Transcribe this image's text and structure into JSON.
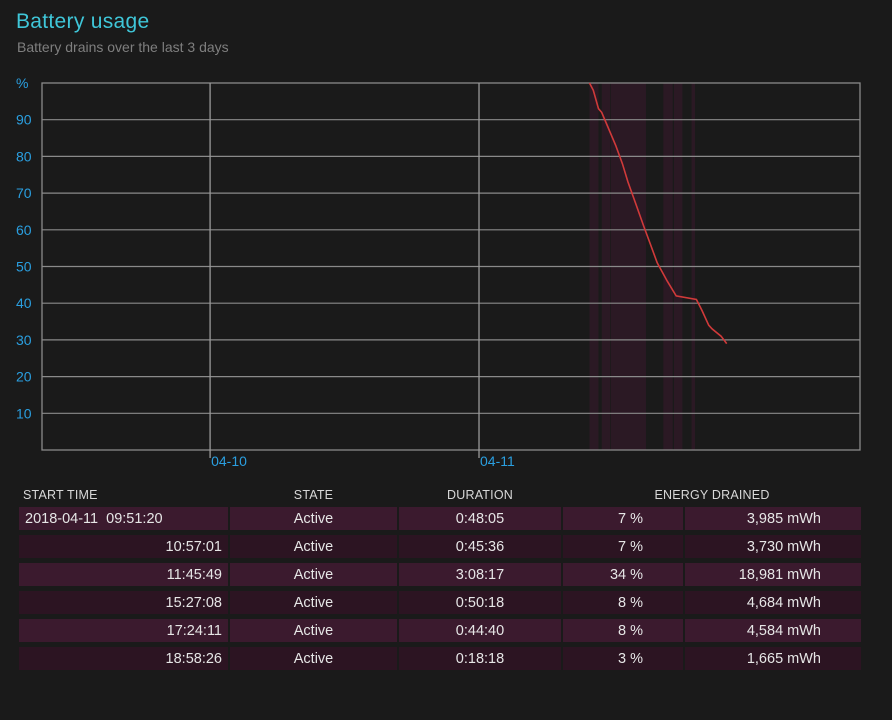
{
  "header": {
    "title": "Battery usage",
    "subtitle": "Battery drains over the last 3 days"
  },
  "colors": {
    "title": "#3fc6d8",
    "axis_label": "#2a9fe0",
    "drain_line": "#d03a3a",
    "active_band": "#3b1a2e",
    "row_odd": "#3b1a2e",
    "row_even": "#2c1422"
  },
  "chart_data": {
    "type": "line",
    "ylabel": "%",
    "ylim": [
      0,
      100
    ],
    "yticks": [
      10,
      20,
      30,
      40,
      50,
      60,
      70,
      80,
      90
    ],
    "x_tick_labels": [
      "04-10",
      "04-11"
    ],
    "x_unit": "hours",
    "x_range_hours": [
      -15,
      58
    ],
    "x_tick_hours": [
      0,
      24
    ],
    "grid": true,
    "series": [
      {
        "points": [
          [
            33.86,
            100
          ],
          [
            34.2,
            98
          ],
          [
            34.66,
            93
          ],
          [
            34.95,
            92
          ],
          [
            35.5,
            88
          ],
          [
            36.2,
            83
          ],
          [
            36.8,
            78
          ],
          [
            37.3,
            73
          ],
          [
            38.0,
            67
          ],
          [
            38.7,
            61
          ],
          [
            39.3,
            56
          ],
          [
            39.9,
            51
          ],
          [
            40.8,
            46
          ],
          [
            41.6,
            42
          ],
          [
            43.4,
            41
          ],
          [
            43.9,
            38
          ],
          [
            44.5,
            34
          ],
          [
            44.8,
            33
          ],
          [
            45.6,
            31
          ],
          [
            46.1,
            29
          ]
        ]
      }
    ],
    "active_periods_hours": [
      [
        33.86,
        34.66
      ],
      [
        34.95,
        35.7
      ],
      [
        35.76,
        38.9
      ],
      [
        40.45,
        41.29
      ],
      [
        41.4,
        42.15
      ],
      [
        42.97,
        43.28
      ]
    ]
  },
  "table": {
    "headers": [
      "START TIME",
      "STATE",
      "DURATION",
      "ENERGY DRAINED"
    ],
    "rows": [
      {
        "start": "2018-04-11  09:51:20",
        "state": "Active",
        "duration": "0:48:05",
        "pct": "7 %",
        "mwh": "3,985 mWh"
      },
      {
        "start": "10:57:01",
        "state": "Active",
        "duration": "0:45:36",
        "pct": "7 %",
        "mwh": "3,730 mWh"
      },
      {
        "start": "11:45:49",
        "state": "Active",
        "duration": "3:08:17",
        "pct": "34 %",
        "mwh": "18,981 mWh"
      },
      {
        "start": "15:27:08",
        "state": "Active",
        "duration": "0:50:18",
        "pct": "8 %",
        "mwh": "4,684 mWh"
      },
      {
        "start": "17:24:11",
        "state": "Active",
        "duration": "0:44:40",
        "pct": "8 %",
        "mwh": "4,584 mWh"
      },
      {
        "start": "18:58:26",
        "state": "Active",
        "duration": "0:18:18",
        "pct": "3 %",
        "mwh": "1,665 mWh"
      }
    ]
  }
}
